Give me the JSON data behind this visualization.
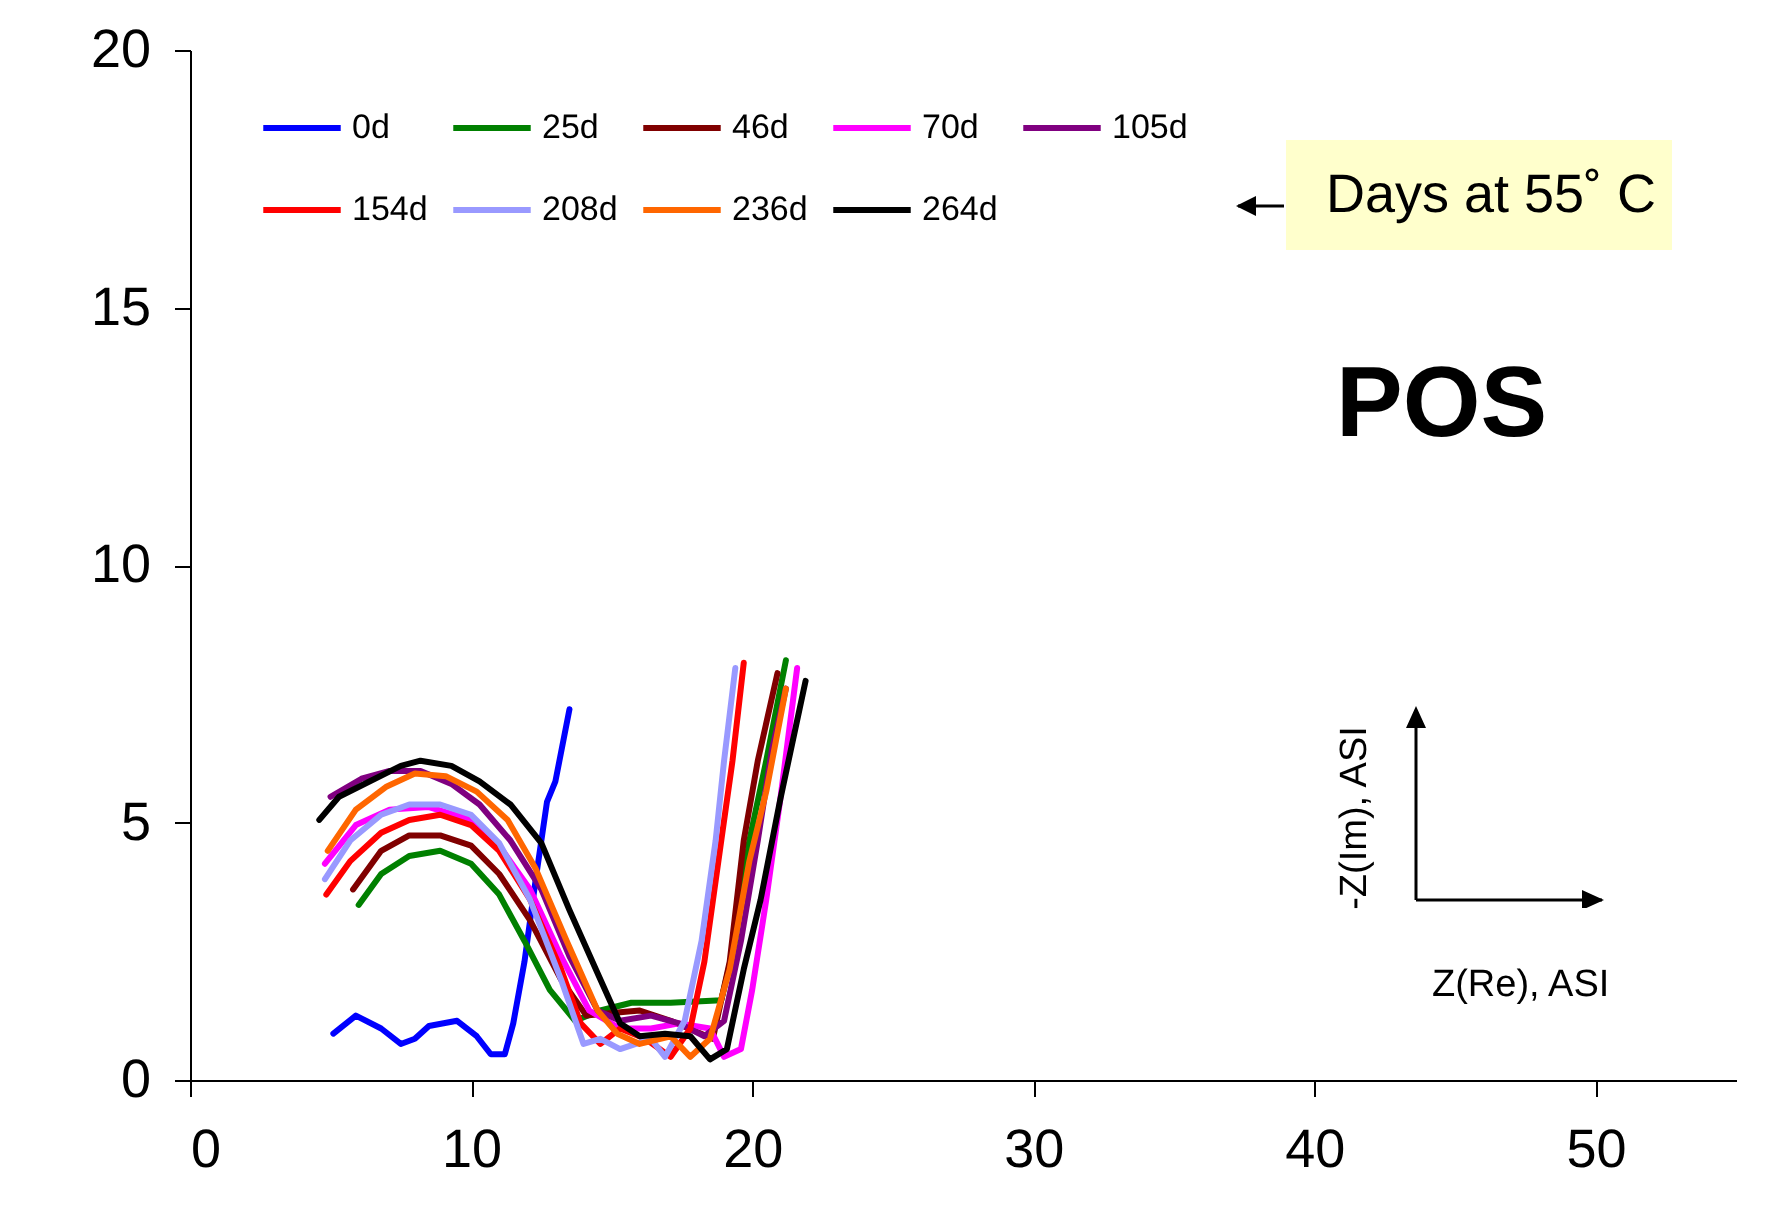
{
  "chart_data": {
    "type": "line",
    "xlabel": "Z(Re), ASI",
    "ylabel": "-Z(Im), ASI",
    "xlim": [
      0,
      55
    ],
    "xticks": [
      0,
      10,
      20,
      30,
      40,
      50
    ],
    "ylim": [
      0,
      20
    ],
    "yticks": [
      0,
      5,
      10,
      15,
      20
    ],
    "grid": false,
    "legend": "top left",
    "marker": "none",
    "line_style": "solid",
    "annotations": [
      "POS",
      "Days at 55˚ C"
    ],
    "series": [
      {
        "name": "0d",
        "color": "#0000ff",
        "x": [
          5.1,
          5.9,
          6.8,
          7.5,
          8.0,
          8.5,
          9.5,
          10.2,
          10.7,
          11.2,
          11.5,
          11.9,
          12.3,
          12.7,
          13.0,
          13.5
        ],
        "values": [
          0.9,
          1.25,
          1.0,
          0.7,
          0.8,
          1.05,
          1.15,
          0.85,
          0.5,
          0.5,
          1.1,
          2.3,
          3.9,
          5.4,
          5.8,
          7.2
        ]
      },
      {
        "name": "25d",
        "color": "#008000",
        "x": [
          6.0,
          6.8,
          7.8,
          8.9,
          10.0,
          11.0,
          11.9,
          12.8,
          13.7,
          14.6,
          15.7,
          17.1,
          18.9,
          19.4,
          19.9,
          20.5,
          21.2
        ],
        "values": [
          3.4,
          4.0,
          4.35,
          4.45,
          4.2,
          3.6,
          2.7,
          1.75,
          1.15,
          1.35,
          1.5,
          1.5,
          1.55,
          2.7,
          4.65,
          6.2,
          8.15
        ]
      },
      {
        "name": "46d",
        "color": "#800000",
        "x": [
          5.8,
          6.8,
          7.8,
          8.9,
          10.0,
          11.0,
          12.1,
          13.2,
          14.1,
          15.0,
          16.0,
          17.1,
          18.6,
          19.2,
          19.7,
          20.2,
          20.9
        ],
        "values": [
          3.7,
          4.45,
          4.75,
          4.75,
          4.55,
          4.0,
          3.1,
          1.95,
          1.25,
          1.3,
          1.35,
          1.15,
          0.8,
          2.3,
          4.65,
          6.2,
          7.9
        ]
      },
      {
        "name": "70d",
        "color": "#ff00ff",
        "x": [
          4.8,
          5.9,
          7.1,
          8.5,
          10.0,
          11.0,
          12.1,
          13.2,
          14.2,
          15.3,
          16.4,
          17.4,
          18.5,
          19.0,
          19.6,
          20.0,
          20.5,
          21.0,
          21.6
        ],
        "values": [
          4.2,
          4.95,
          5.25,
          5.3,
          5.05,
          4.55,
          3.7,
          2.4,
          1.35,
          1.0,
          1.0,
          1.1,
          1.0,
          0.45,
          0.6,
          1.75,
          3.5,
          5.45,
          8.0
        ]
      },
      {
        "name": "105d",
        "color": "#800080",
        "x": [
          5.0,
          6.1,
          7.1,
          8.2,
          9.3,
          10.3,
          11.4,
          12.5,
          13.5,
          14.5,
          15.3,
          16.4,
          17.4,
          18.3,
          19.0,
          19.6,
          20.2,
          20.7,
          21.2
        ],
        "values": [
          5.5,
          5.85,
          6.0,
          6.0,
          5.75,
          5.35,
          4.65,
          3.7,
          2.4,
          1.35,
          1.15,
          1.25,
          1.1,
          0.85,
          1.15,
          2.7,
          4.65,
          6.4,
          7.6
        ]
      },
      {
        "name": "154d",
        "color": "#ff0000",
        "x": [
          4.85,
          5.7,
          6.8,
          7.8,
          8.9,
          10.0,
          11.0,
          12.1,
          13.2,
          13.9,
          14.6,
          15.3,
          16.2,
          17.1,
          17.8,
          18.3,
          18.9,
          19.3,
          19.7
        ],
        "values": [
          3.6,
          4.25,
          4.8,
          5.05,
          5.15,
          4.95,
          4.45,
          3.5,
          2.15,
          1.1,
          0.7,
          1.0,
          0.8,
          0.45,
          1.0,
          2.3,
          4.65,
          6.2,
          8.1
        ]
      },
      {
        "name": "208d",
        "color": "#9999ff",
        "x": [
          4.8,
          5.7,
          6.8,
          7.8,
          8.9,
          10.0,
          11.0,
          12.1,
          13.2,
          14.0,
          14.6,
          15.3,
          16.4,
          16.9,
          17.6,
          18.2,
          18.7,
          19.0,
          19.4
        ],
        "values": [
          3.9,
          4.65,
          5.15,
          5.35,
          5.35,
          5.15,
          4.6,
          3.5,
          1.95,
          0.7,
          0.8,
          0.6,
          0.8,
          0.45,
          1.15,
          2.7,
          4.65,
          6.2,
          8.0
        ]
      },
      {
        "name": "236d",
        "color": "#ff6600",
        "x": [
          4.9,
          5.9,
          7.0,
          8.0,
          9.1,
          10.2,
          11.3,
          12.3,
          13.4,
          14.5,
          15.2,
          16.0,
          17.1,
          17.8,
          18.5,
          19.2,
          19.9,
          20.5,
          21.2
        ],
        "values": [
          4.45,
          5.25,
          5.7,
          5.95,
          5.9,
          5.6,
          5.05,
          4.1,
          2.7,
          1.35,
          0.9,
          0.7,
          0.85,
          0.45,
          0.8,
          2.15,
          4.25,
          5.6,
          7.6
        ]
      },
      {
        "name": "264d",
        "color": "#000000",
        "x": [
          4.6,
          5.3,
          6.4,
          7.5,
          8.2,
          9.3,
          10.3,
          11.4,
          12.5,
          13.5,
          14.6,
          15.3,
          16.0,
          16.9,
          17.8,
          18.5,
          19.1,
          19.7,
          20.3,
          21.0,
          21.9
        ],
        "values": [
          5.05,
          5.5,
          5.8,
          6.1,
          6.2,
          6.1,
          5.8,
          5.35,
          4.6,
          3.3,
          1.95,
          1.1,
          0.85,
          0.9,
          0.85,
          0.4,
          0.6,
          2.15,
          3.5,
          5.45,
          7.75
        ]
      }
    ]
  }
}
